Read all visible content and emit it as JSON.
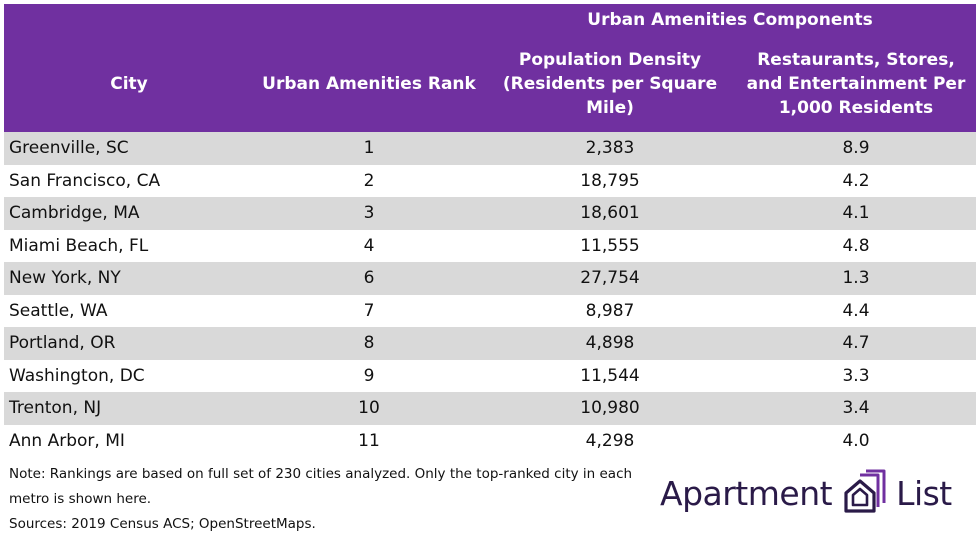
{
  "table": {
    "group_header": "Urban Amenities Components",
    "columns": [
      "City",
      "Urban Amenities Rank",
      "Population Density (Residents per Square Mile)",
      "Restaurants, Stores, and Entertainment Per 1,000 Residents"
    ],
    "rows": [
      {
        "city": "Greenville, SC",
        "rank": "1",
        "density": "2,383",
        "rest": "8.9"
      },
      {
        "city": "San Francisco, CA",
        "rank": "2",
        "density": "18,795",
        "rest": "4.2"
      },
      {
        "city": "Cambridge, MA",
        "rank": "3",
        "density": "18,601",
        "rest": "4.1"
      },
      {
        "city": "Miami Beach, FL",
        "rank": "4",
        "density": "11,555",
        "rest": "4.8"
      },
      {
        "city": "New York, NY",
        "rank": "6",
        "density": "27,754",
        "rest": "1.3"
      },
      {
        "city": "Seattle, WA",
        "rank": "7",
        "density": "8,987",
        "rest": "4.4"
      },
      {
        "city": "Portland, OR",
        "rank": "8",
        "density": "4,898",
        "rest": "4.7"
      },
      {
        "city": "Washington, DC",
        "rank": "9",
        "density": "11,544",
        "rest": "3.3"
      },
      {
        "city": "Trenton, NJ",
        "rank": "10",
        "density": "10,980",
        "rest": "3.4"
      },
      {
        "city": "Ann Arbor, MI",
        "rank": "11",
        "density": "4,298",
        "rest": "4.0"
      }
    ]
  },
  "notes": {
    "note": "Note: Rankings are based on full set of 230 cities analyzed. Only the top-ranked city in each metro is shown here.",
    "sources": "Sources: 2019 Census ACS; OpenStreetMaps."
  },
  "logo": {
    "word1": "Apartment",
    "word2": "List",
    "icon": "apartment-list-building-icon"
  },
  "colors": {
    "header_bg": "#7030a0",
    "stripe": "#d9d9d9",
    "logo_text": "#2a1a48"
  }
}
